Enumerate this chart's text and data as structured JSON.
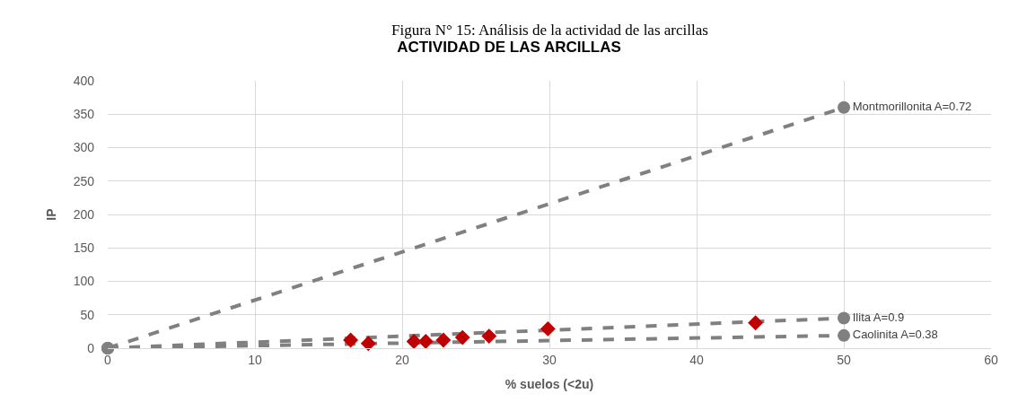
{
  "chart_data": {
    "type": "line",
    "title": "ACTIVIDAD DE LAS ARCILLAS",
    "xlabel": "% suelos (<2u)",
    "ylabel": "IP",
    "xlim": [
      0,
      60
    ],
    "xticks": [
      0,
      10,
      20,
      30,
      40,
      50,
      60
    ],
    "ylim": [
      0,
      400
    ],
    "yticks": [
      0,
      50,
      100,
      150,
      200,
      250,
      300,
      350,
      400
    ],
    "grid": true,
    "series": [
      {
        "name": "Montmorillonita A=0.72",
        "color": "#808080",
        "x": [
          0,
          50
        ],
        "values": [
          0,
          360
        ],
        "marker": "circle",
        "line_style": "dashed"
      },
      {
        "name": "Ilita A=0.9",
        "color": "#808080",
        "x": [
          0,
          50
        ],
        "values": [
          0,
          45
        ],
        "marker": "circle",
        "line_style": "dashed"
      },
      {
        "name": "Caolinita A=0.38",
        "color": "#808080",
        "x": [
          0,
          50
        ],
        "values": [
          0,
          19
        ],
        "marker": "circle",
        "line_style": "dashed"
      },
      {
        "type": "scatter",
        "color": "#c00000",
        "x": [
          16.5,
          17.7,
          20.8,
          21.6,
          22.8,
          24.1,
          25.9,
          29.9,
          44.0
        ],
        "values": [
          12,
          7,
          10,
          10,
          12,
          16,
          18,
          29,
          38
        ],
        "marker": "diamond"
      }
    ],
    "annotations": [
      "Figura N° 15: Análisis de la actividad de las arcillas"
    ]
  }
}
